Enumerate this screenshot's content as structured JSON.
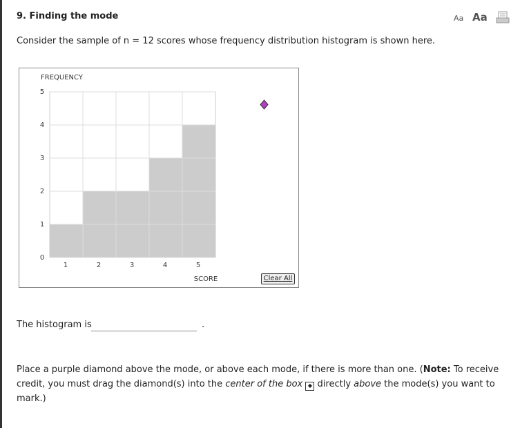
{
  "header": {
    "title": "9.  Finding the mode",
    "font_small": "Aa",
    "font_large": "Aa"
  },
  "intro": "Consider the sample of n = 12 scores whose frequency distribution histogram is shown here.",
  "chart_data": {
    "type": "bar",
    "ylabel": "FREQUENCY",
    "xlabel": "SCORE",
    "categories": [
      "1",
      "2",
      "3",
      "4",
      "5"
    ],
    "values": [
      1,
      2,
      2,
      3,
      4
    ],
    "color": "#cccccc",
    "ylim": [
      0,
      5
    ],
    "yticks": [
      0,
      1,
      2,
      3,
      4,
      5
    ],
    "grid": true,
    "button": "Clear All"
  },
  "answer": {
    "label": "The histogram is",
    "end": "."
  },
  "instructions": [
    "Place a purple diamond above the mode, or above each mode, if there is more than one. (",
    "Note:",
    " To receive credit, you must drag the diamond(s) into the ",
    "center of the box",
    " directly ",
    "above",
    " the mode(s) you want to mark.)"
  ]
}
